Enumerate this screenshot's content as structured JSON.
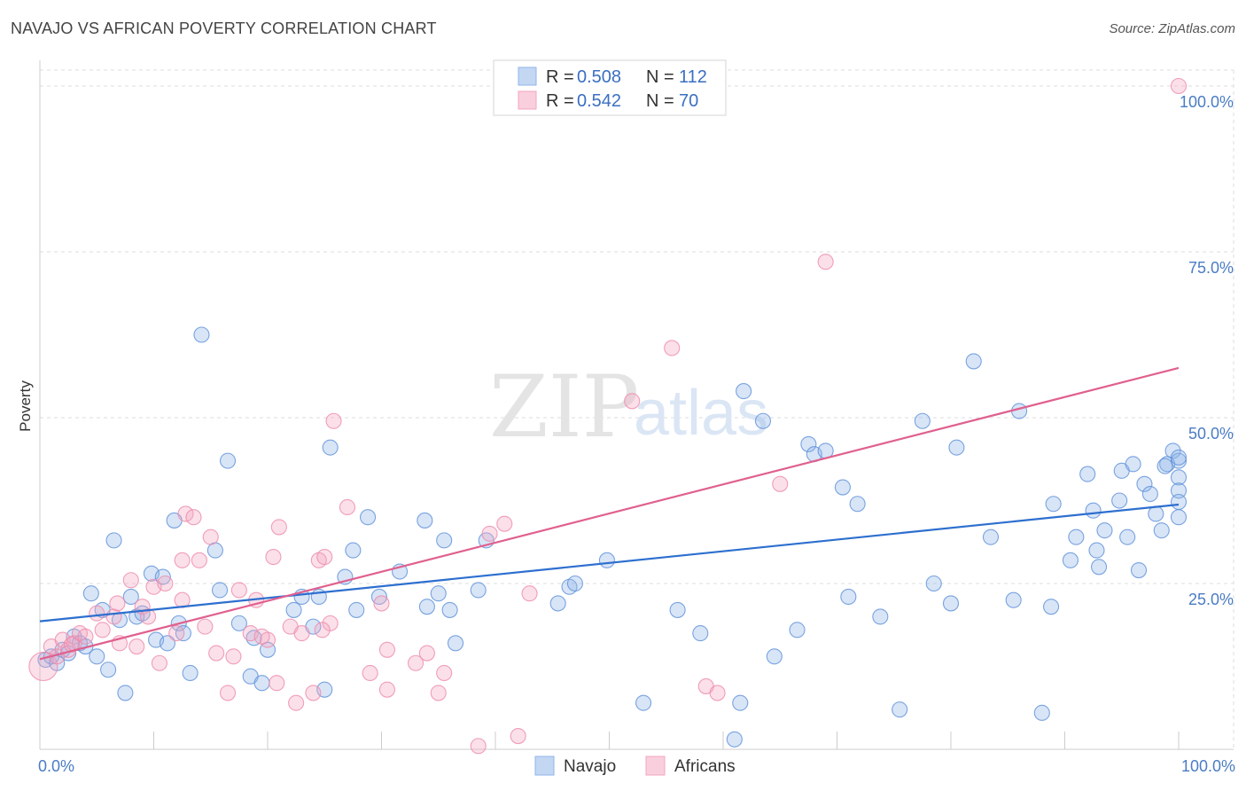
{
  "header": {
    "title": "NAVAJO VS AFRICAN POVERTY CORRELATION CHART",
    "source": "Source: ZipAtlas.com"
  },
  "watermark": {
    "part1": "ZIP",
    "part2": "atlas"
  },
  "legend": {
    "rows": [
      {
        "r_label": "R =",
        "r_value": "0.508",
        "n_label": "N =",
        "n_value": "112",
        "color": "#8fb4e8"
      },
      {
        "r_label": "R =",
        "r_value": "0.542",
        "n_label": "N =",
        "n_value": "70",
        "color": "#f4a6c0"
      }
    ]
  },
  "bottom_legend": [
    {
      "label": "Navajo",
      "color": "#8fb4e8"
    },
    {
      "label": "Africans",
      "color": "#f4a6c0"
    }
  ],
  "chart_data": {
    "type": "scatter",
    "title": "NAVAJO VS AFRICAN POVERTY CORRELATION CHART",
    "xlabel": "",
    "ylabel": "Poverty",
    "xlim": [
      0,
      100
    ],
    "ylim": [
      0,
      100
    ],
    "x_tick_labels": [
      "0.0%",
      "100.0%"
    ],
    "y_ticks": [
      {
        "value": 25,
        "label": "25.0%"
      },
      {
        "value": 50,
        "label": "50.0%"
      },
      {
        "value": 75,
        "label": "75.0%"
      },
      {
        "value": 100,
        "label": "100.0%"
      }
    ],
    "grid": true,
    "legend_position": "top-center",
    "series": [
      {
        "name": "Navajo",
        "color": "#5b8fd8",
        "trend": {
          "x": [
            0,
            100
          ],
          "y": [
            19.3,
            36.9
          ]
        },
        "points": [
          [
            0.5,
            13.5
          ],
          [
            1.0,
            14.0
          ],
          [
            1.5,
            13.0
          ],
          [
            2.0,
            15.0
          ],
          [
            2.5,
            14.5
          ],
          [
            3.0,
            17.0
          ],
          [
            3.5,
            16.0
          ],
          [
            4.0,
            15.5
          ],
          [
            4.5,
            23.5
          ],
          [
            5.0,
            14.0
          ],
          [
            5.5,
            21.0
          ],
          [
            6.0,
            12.0
          ],
          [
            6.5,
            31.5
          ],
          [
            7.0,
            19.5
          ],
          [
            7.5,
            8.5
          ],
          [
            8.0,
            23.0
          ],
          [
            8.5,
            20.0
          ],
          [
            9.0,
            20.5
          ],
          [
            9.8,
            26.5
          ],
          [
            10.2,
            16.5
          ],
          [
            10.8,
            26.0
          ],
          [
            11.2,
            16.0
          ],
          [
            11.8,
            34.5
          ],
          [
            12.2,
            19.0
          ],
          [
            12.6,
            17.5
          ],
          [
            13.2,
            11.5
          ],
          [
            14.2,
            62.5
          ],
          [
            15.8,
            24.0
          ],
          [
            15.4,
            30.0
          ],
          [
            16.5,
            43.5
          ],
          [
            17.5,
            19.0
          ],
          [
            18.5,
            11.0
          ],
          [
            18.8,
            16.8
          ],
          [
            19.5,
            10.0
          ],
          [
            20.0,
            15.0
          ],
          [
            22.3,
            21.0
          ],
          [
            23.0,
            23.0
          ],
          [
            24.0,
            18.5
          ],
          [
            24.5,
            23.0
          ],
          [
            25.0,
            9.0
          ],
          [
            25.5,
            45.5
          ],
          [
            26.8,
            26.0
          ],
          [
            27.5,
            30.0
          ],
          [
            27.8,
            21.0
          ],
          [
            28.8,
            35.0
          ],
          [
            29.8,
            23.0
          ],
          [
            31.6,
            26.8
          ],
          [
            33.8,
            34.5
          ],
          [
            34.0,
            21.5
          ],
          [
            35.0,
            23.5
          ],
          [
            35.5,
            31.5
          ],
          [
            36.0,
            21.0
          ],
          [
            36.5,
            16.0
          ],
          [
            38.5,
            24.0
          ],
          [
            39.2,
            31.5
          ],
          [
            45.5,
            22.0
          ],
          [
            46.5,
            24.5
          ],
          [
            47.0,
            25.0
          ],
          [
            49.8,
            28.5
          ],
          [
            53.0,
            7.0
          ],
          [
            56.0,
            21.0
          ],
          [
            58.0,
            17.5
          ],
          [
            61.0,
            1.5
          ],
          [
            61.5,
            7.0
          ],
          [
            61.8,
            54.0
          ],
          [
            63.5,
            49.5
          ],
          [
            64.5,
            14.0
          ],
          [
            66.5,
            18.0
          ],
          [
            67.5,
            46.0
          ],
          [
            68.0,
            44.5
          ],
          [
            69.0,
            45.0
          ],
          [
            70.5,
            39.5
          ],
          [
            71.0,
            23.0
          ],
          [
            71.8,
            37.0
          ],
          [
            73.8,
            20.0
          ],
          [
            75.5,
            6.0
          ],
          [
            77.5,
            49.5
          ],
          [
            78.5,
            25.0
          ],
          [
            80.0,
            22.0
          ],
          [
            80.5,
            45.5
          ],
          [
            82.0,
            58.5
          ],
          [
            83.5,
            32.0
          ],
          [
            85.5,
            22.5
          ],
          [
            86.0,
            51.0
          ],
          [
            88.0,
            5.5
          ],
          [
            88.8,
            21.5
          ],
          [
            89.0,
            37.0
          ],
          [
            90.5,
            28.5
          ],
          [
            91.0,
            32.0
          ],
          [
            92.0,
            41.5
          ],
          [
            92.5,
            36.0
          ],
          [
            93.0,
            27.5
          ],
          [
            93.5,
            33.0
          ],
          [
            94.8,
            37.5
          ],
          [
            95.0,
            42.0
          ],
          [
            95.5,
            32.0
          ],
          [
            96.0,
            43.0
          ],
          [
            96.5,
            27.0
          ],
          [
            97.0,
            40.0
          ],
          [
            97.5,
            38.5
          ],
          [
            98.0,
            35.5
          ],
          [
            98.5,
            33.0
          ],
          [
            99.0,
            43.0
          ],
          [
            99.5,
            45.0
          ],
          [
            100.0,
            35.0
          ],
          [
            100.5,
            41.0
          ],
          [
            101.0,
            43.5
          ],
          [
            101.5,
            39.0
          ],
          [
            92.8,
            30.0
          ],
          [
            98.8,
            42.7
          ],
          [
            100.2,
            37.3
          ],
          [
            100.8,
            44.0
          ]
        ]
      },
      {
        "name": "Africans",
        "color": "#ee88aa",
        "trend": {
          "x": [
            0,
            100
          ],
          "y": [
            13.6,
            57.5
          ]
        },
        "points": [
          [
            0.3,
            12.5
          ],
          [
            1.0,
            15.5
          ],
          [
            1.5,
            14.0
          ],
          [
            2.0,
            16.5
          ],
          [
            2.5,
            15.0
          ],
          [
            3.0,
            16.0
          ],
          [
            3.5,
            17.5
          ],
          [
            4.0,
            17.0
          ],
          [
            5.0,
            20.5
          ],
          [
            5.5,
            18.0
          ],
          [
            6.5,
            20.0
          ],
          [
            6.8,
            22.0
          ],
          [
            7.0,
            16.0
          ],
          [
            8.0,
            25.5
          ],
          [
            8.5,
            15.5
          ],
          [
            9.0,
            21.5
          ],
          [
            9.5,
            20.0
          ],
          [
            10.0,
            24.5
          ],
          [
            10.5,
            13.0
          ],
          [
            11.0,
            25.0
          ],
          [
            12.0,
            17.5
          ],
          [
            12.5,
            28.5
          ],
          [
            12.8,
            35.5
          ],
          [
            13.5,
            35.0
          ],
          [
            14.0,
            28.5
          ],
          [
            14.5,
            18.5
          ],
          [
            15.0,
            32.0
          ],
          [
            15.5,
            14.5
          ],
          [
            16.5,
            8.5
          ],
          [
            17.0,
            14.0
          ],
          [
            17.5,
            24.0
          ],
          [
            18.5,
            17.5
          ],
          [
            19.0,
            22.5
          ],
          [
            20.0,
            16.5
          ],
          [
            20.5,
            29.0
          ],
          [
            21.0,
            33.5
          ],
          [
            22.0,
            18.5
          ],
          [
            22.5,
            7.0
          ],
          [
            23.0,
            17.5
          ],
          [
            24.0,
            8.5
          ],
          [
            24.5,
            28.5
          ],
          [
            25.0,
            29.0
          ],
          [
            25.5,
            19.0
          ],
          [
            25.8,
            49.5
          ],
          [
            27.0,
            36.5
          ],
          [
            29.0,
            11.5
          ],
          [
            30.5,
            9.0
          ],
          [
            30.0,
            22.0
          ],
          [
            33.0,
            13.0
          ],
          [
            34.0,
            14.5
          ],
          [
            35.0,
            8.5
          ],
          [
            35.5,
            11.5
          ],
          [
            38.5,
            0.5
          ],
          [
            39.5,
            32.5
          ],
          [
            40.8,
            34.0
          ],
          [
            42.0,
            2.0
          ],
          [
            43.0,
            23.5
          ],
          [
            52.0,
            52.5
          ],
          [
            55.5,
            60.5
          ],
          [
            58.5,
            9.5
          ],
          [
            59.5,
            8.5
          ],
          [
            65.0,
            40.0
          ],
          [
            69.0,
            73.5
          ],
          [
            100.0,
            100.0
          ],
          [
            2.8,
            15.8
          ],
          [
            12.5,
            22.5
          ],
          [
            19.5,
            17.0
          ],
          [
            24.8,
            18.0
          ],
          [
            30.5,
            15.0
          ],
          [
            20.8,
            10.0
          ]
        ]
      }
    ]
  }
}
